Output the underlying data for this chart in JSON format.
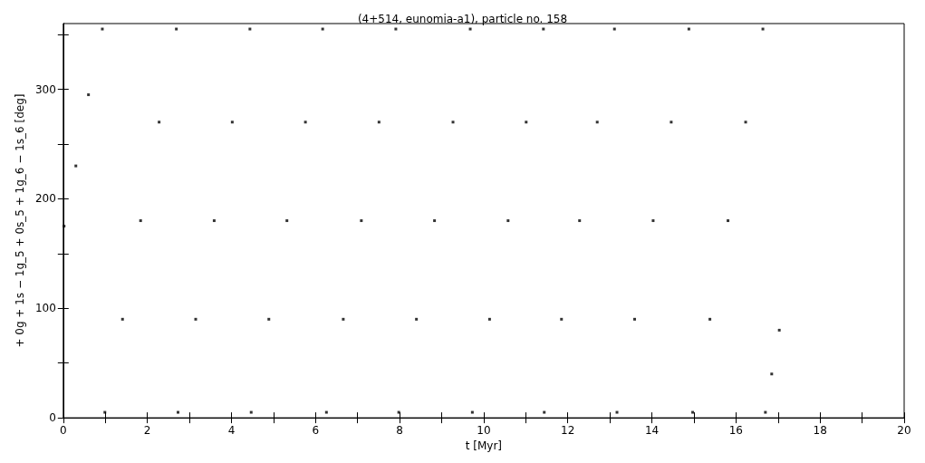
{
  "chart_data": {
    "type": "scatter",
    "title": "(4+514, eunomia-a1), particle no. 158",
    "xlabel": "t [Myr]",
    "ylabel": "+ 0g + 1s − 1g_5 + 0s_5 + 1g_6 − 1s_6 [deg]",
    "xlim": [
      0,
      20
    ],
    "ylim": [
      0,
      360
    ],
    "xticks": [
      0,
      {
        "value": 1,
        "label": null
      },
      2,
      {
        "value": 3,
        "label": null
      },
      4,
      {
        "value": 5,
        "label": null
      },
      6,
      {
        "value": 7,
        "label": null
      },
      8,
      {
        "value": 9,
        "label": null
      },
      10,
      {
        "value": 11,
        "label": null
      },
      12,
      {
        "value": 13,
        "label": null
      },
      14,
      {
        "value": 15,
        "label": null
      },
      16,
      {
        "value": 17,
        "label": null
      },
      18,
      {
        "value": 19,
        "label": null
      },
      20
    ],
    "yticks": [
      0,
      {
        "value": 50,
        "label": null
      },
      100,
      {
        "value": 150,
        "label": null
      },
      200,
      {
        "value": 250,
        "label": null
      },
      300,
      {
        "value": 350,
        "label": null
      }
    ],
    "marker": "square",
    "series": [
      {
        "color": "#000000",
        "x": [
          0.02,
          0.3,
          0.6,
          0.93,
          0.99,
          1.41,
          1.84,
          2.28,
          2.69,
          2.73,
          3.15,
          3.59,
          4.02,
          4.44,
          4.47,
          4.89,
          5.32,
          5.76,
          6.17,
          6.26,
          6.66,
          7.09,
          7.51,
          7.91,
          7.98,
          8.4,
          8.83,
          9.27,
          9.68,
          9.73,
          10.14,
          10.58,
          11.01,
          11.42,
          11.44,
          11.85,
          12.28,
          12.7,
          13.11,
          13.17,
          13.59,
          14.03,
          14.46,
          14.88,
          14.97,
          15.38,
          15.81,
          16.23,
          16.64,
          16.7,
          16.85,
          17.03
        ],
        "values": [
          175,
          230,
          295,
          355,
          5,
          90,
          180,
          270,
          355,
          5,
          90,
          180,
          270,
          355,
          5,
          90,
          180,
          270,
          355,
          5,
          90,
          180,
          270,
          355,
          5,
          90,
          180,
          270,
          355,
          5,
          90,
          180,
          270,
          355,
          5,
          90,
          180,
          270,
          355,
          5,
          90,
          180,
          270,
          355,
          5,
          90,
          180,
          270,
          355,
          5,
          40,
          80
        ]
      }
    ]
  }
}
